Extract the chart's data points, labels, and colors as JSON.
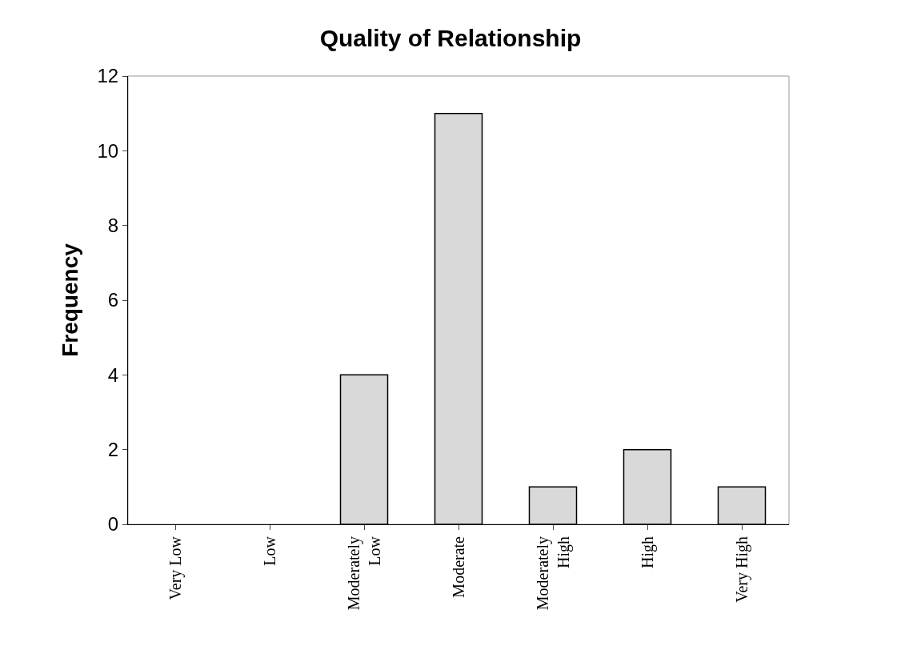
{
  "chart_data": {
    "type": "bar",
    "title": "Quality of Relationship",
    "ylabel": "Frequency",
    "categories": [
      "Very Low",
      "Low",
      "Moderately Low",
      "Moderate",
      "Moderately High",
      "High",
      "Very High"
    ],
    "values": [
      0,
      0,
      4,
      11,
      1,
      2,
      1
    ],
    "color": "#d9d9d9",
    "ylim": [
      0,
      12
    ],
    "yticks": [
      0,
      2,
      4,
      6,
      8,
      10,
      12
    ],
    "grid": false
  }
}
